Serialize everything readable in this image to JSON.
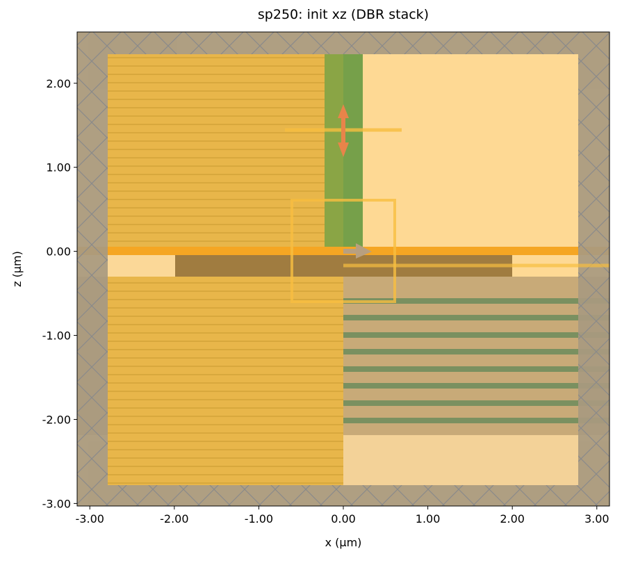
{
  "chart_data": {
    "type": "structure",
    "title": "sp250: init xz (DBR stack)",
    "x_label": "x (µm)",
    "y_label": "z (µm)",
    "xlim": [
      -3.15,
      3.15
    ],
    "ylim": [
      -3.03,
      2.61
    ],
    "xticks": [
      {
        "value": -3,
        "label": "-3.00"
      },
      {
        "value": -2,
        "label": "-2.00"
      },
      {
        "value": -1,
        "label": "-1.00"
      },
      {
        "value": 0,
        "label": "0.00"
      },
      {
        "value": 1,
        "label": "1.00"
      },
      {
        "value": 2,
        "label": "2.00"
      },
      {
        "value": 3,
        "label": "3.00"
      }
    ],
    "yticks": [
      {
        "value": -3,
        "label": "-3.00"
      },
      {
        "value": -2,
        "label": "-2.00"
      },
      {
        "value": -1,
        "label": "-1.00"
      },
      {
        "value": 0,
        "label": "0.00"
      },
      {
        "value": 1,
        "label": "1.00"
      },
      {
        "value": 2,
        "label": "2.00"
      }
    ]
  }
}
